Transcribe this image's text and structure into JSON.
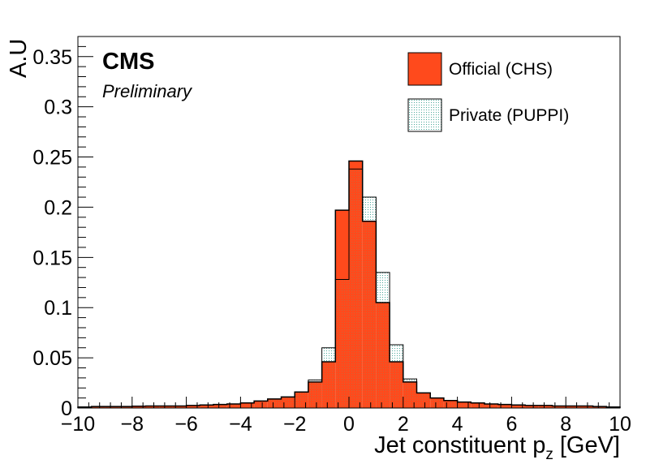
{
  "chart_data": {
    "type": "bar",
    "experiment_label": "CMS",
    "status_label": "Preliminary",
    "xlabel": "Jet constituent p",
    "xlabel_sub": "z",
    "xlabel_unit": "[GeV]",
    "ylabel": "A.U",
    "xlim": [
      -10,
      10
    ],
    "ylim": [
      0,
      0.37
    ],
    "x_ticks": [
      -10,
      -8,
      -6,
      -4,
      -2,
      0,
      2,
      4,
      6,
      8,
      10
    ],
    "x_tick_labels": [
      "−10",
      "−8",
      "−6",
      "−4",
      "−2",
      "0",
      "2",
      "4",
      "6",
      "8",
      "10"
    ],
    "y_ticks": [
      0,
      0.05,
      0.1,
      0.15,
      0.2,
      0.25,
      0.3,
      0.35
    ],
    "y_tick_labels": [
      "0",
      "0.05",
      "0.1",
      "0.15",
      "0.2",
      "0.25",
      "0.3",
      "0.35"
    ],
    "legend_position": "top-right",
    "grid": false,
    "bin_edges": [
      -10,
      -9.5,
      -9,
      -8.5,
      -8,
      -7.5,
      -7,
      -6.5,
      -6,
      -5.5,
      -5,
      -4.5,
      -4,
      -3.5,
      -3,
      -2.5,
      -2,
      -1.5,
      -1,
      -0.5,
      0,
      0.5,
      1,
      1.5,
      2,
      2.5,
      3,
      3.5,
      4,
      4.5,
      5,
      5.5,
      6,
      6.5,
      7,
      7.5,
      8,
      8.5,
      9,
      9.5,
      10
    ],
    "series": [
      {
        "name": "Official (CHS)",
        "color": "#ff4a1c",
        "values": [
          0.001,
          0.0015,
          0.0015,
          0.0015,
          0.0018,
          0.002,
          0.002,
          0.002,
          0.0025,
          0.003,
          0.0035,
          0.004,
          0.005,
          0.007,
          0.009,
          0.011,
          0.016,
          0.026,
          0.046,
          0.197,
          0.246,
          0.186,
          0.105,
          0.046,
          0.026,
          0.015,
          0.01,
          0.0075,
          0.006,
          0.005,
          0.004,
          0.0035,
          0.003,
          0.0025,
          0.0025,
          0.002,
          0.002,
          0.002,
          0.0015,
          0.001
        ]
      },
      {
        "name": "Private (PUPPI)",
        "color": "#e3f4f1",
        "values": [
          0.001,
          0.0015,
          0.0015,
          0.0015,
          0.0018,
          0.002,
          0.002,
          0.002,
          0.0025,
          0.003,
          0.0035,
          0.004,
          0.005,
          0.007,
          0.009,
          0.011,
          0.016,
          0.028,
          0.06,
          0.128,
          0.238,
          0.21,
          0.135,
          0.063,
          0.029,
          0.015,
          0.01,
          0.0075,
          0.006,
          0.005,
          0.004,
          0.0035,
          0.003,
          0.0025,
          0.0025,
          0.002,
          0.002,
          0.002,
          0.0015,
          0.001
        ]
      }
    ]
  }
}
